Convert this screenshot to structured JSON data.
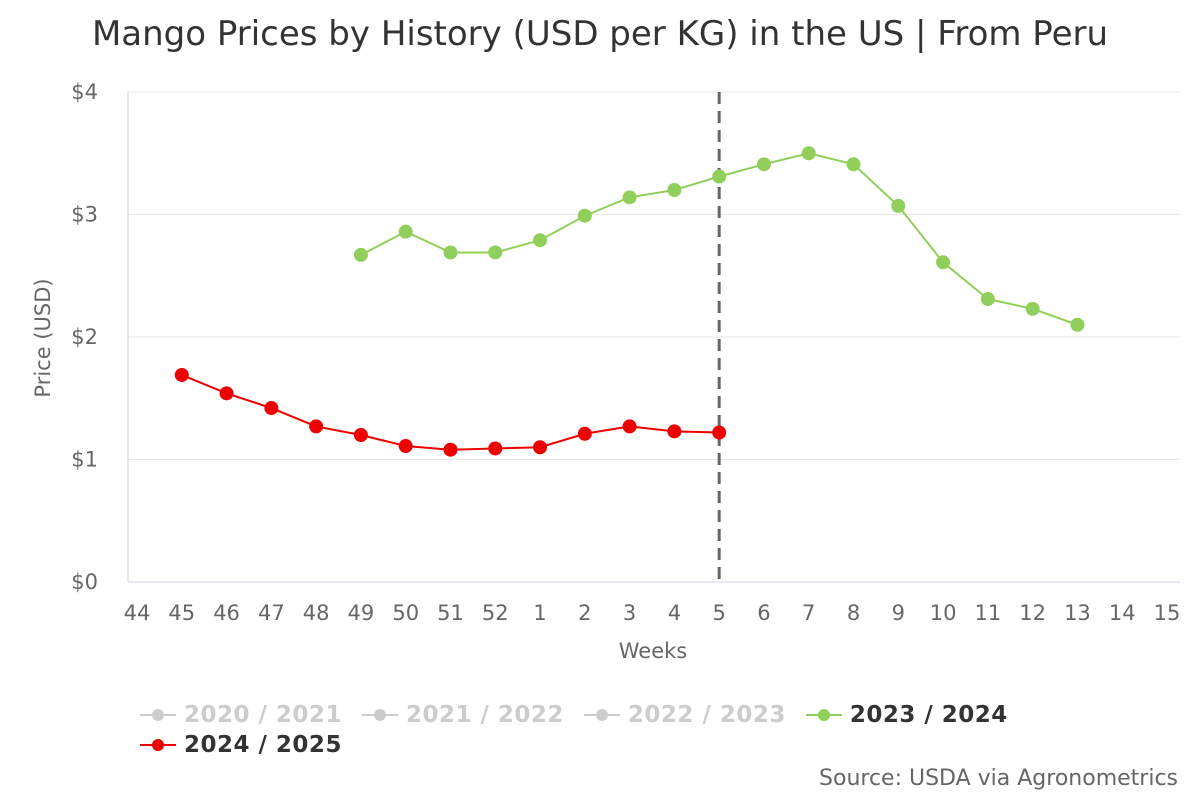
{
  "chart_data": {
    "type": "line",
    "title": "Mango Prices by History (USD per KG) in the US | From Peru",
    "xlabel": "Weeks",
    "ylabel": "Price (USD)",
    "x_categories": [
      "44",
      "45",
      "46",
      "47",
      "48",
      "49",
      "50",
      "51",
      "52",
      "1",
      "2",
      "3",
      "4",
      "5",
      "6",
      "7",
      "8",
      "9",
      "10",
      "11",
      "12",
      "13",
      "14",
      "15"
    ],
    "y_ticks": [
      "$0",
      "$1",
      "$2",
      "$3",
      "$4"
    ],
    "ylim": [
      0,
      4
    ],
    "grid": "horizontal",
    "current_week_marker": "5",
    "legend_position": "bottom",
    "series": [
      {
        "name": "2020 / 2021",
        "visible": false,
        "color": "#cccccc",
        "points": []
      },
      {
        "name": "2021 / 2022",
        "visible": false,
        "color": "#cccccc",
        "points": []
      },
      {
        "name": "2022 / 2023",
        "visible": false,
        "color": "#cccccc",
        "points": []
      },
      {
        "name": "2023 / 2024",
        "visible": true,
        "color": "#90d05a",
        "points": [
          {
            "x": "49",
            "y": 2.67
          },
          {
            "x": "50",
            "y": 2.86
          },
          {
            "x": "51",
            "y": 2.69
          },
          {
            "x": "52",
            "y": 2.69
          },
          {
            "x": "1",
            "y": 2.79
          },
          {
            "x": "2",
            "y": 2.99
          },
          {
            "x": "3",
            "y": 3.14
          },
          {
            "x": "4",
            "y": 3.2
          },
          {
            "x": "5",
            "y": 3.31
          },
          {
            "x": "6",
            "y": 3.41
          },
          {
            "x": "7",
            "y": 3.5
          },
          {
            "x": "8",
            "y": 3.41
          },
          {
            "x": "9",
            "y": 3.07
          },
          {
            "x": "10",
            "y": 2.61
          },
          {
            "x": "11",
            "y": 2.31
          },
          {
            "x": "12",
            "y": 2.23
          },
          {
            "x": "13",
            "y": 2.1
          }
        ]
      },
      {
        "name": "2024 / 2025",
        "visible": true,
        "color": "#ee0000",
        "points": [
          {
            "x": "45",
            "y": 1.69
          },
          {
            "x": "46",
            "y": 1.54
          },
          {
            "x": "47",
            "y": 1.42
          },
          {
            "x": "48",
            "y": 1.27
          },
          {
            "x": "49",
            "y": 1.2
          },
          {
            "x": "50",
            "y": 1.11
          },
          {
            "x": "51",
            "y": 1.08
          },
          {
            "x": "52",
            "y": 1.09
          },
          {
            "x": "1",
            "y": 1.1
          },
          {
            "x": "2",
            "y": 1.21
          },
          {
            "x": "3",
            "y": 1.27
          },
          {
            "x": "4",
            "y": 1.23
          },
          {
            "x": "5",
            "y": 1.22
          }
        ]
      }
    ]
  },
  "source_text": "Source: USDA via Agronometrics"
}
